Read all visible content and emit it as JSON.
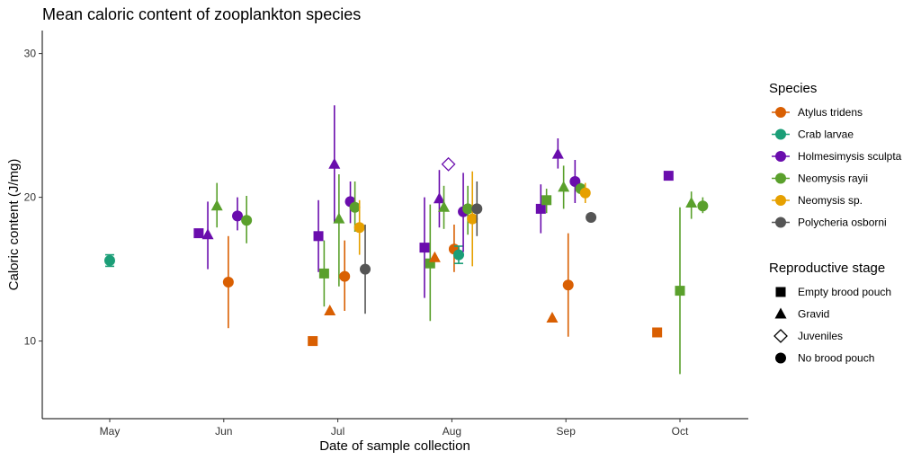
{
  "chart_data": {
    "type": "scatter",
    "title": "Mean caloric content of zooplankton species",
    "xlabel": "Date of sample collection",
    "ylabel": "Caloric content (J/mg)",
    "x_categories": [
      "May",
      "Jun",
      "Jul",
      "Aug",
      "Sep",
      "Oct"
    ],
    "yticks": [
      10,
      20,
      30
    ],
    "ylim": [
      4.6,
      31.6
    ],
    "grid": false,
    "legend_position": "right",
    "legend_species_title": "Species",
    "legend_stage_title": "Reproductive stage",
    "species": [
      {
        "name": "Atylus tridens",
        "color": "#D95F02"
      },
      {
        "name": "Crab larvae",
        "color": "#1B9E77"
      },
      {
        "name": "Holmesimysis sculpta",
        "color": "#6A0DAD"
      },
      {
        "name": "Neomysis rayii",
        "color": "#5AA02C"
      },
      {
        "name": "Neomysis sp.",
        "color": "#E6A000"
      },
      {
        "name": "Polycheria osborni",
        "color": "#555555"
      }
    ],
    "stages": [
      {
        "name": "Empty brood pouch",
        "shape": "square"
      },
      {
        "name": "Gravid",
        "shape": "triangle"
      },
      {
        "name": "Juveniles",
        "shape": "diamond-open"
      },
      {
        "name": "No brood pouch",
        "shape": "circle"
      }
    ],
    "points": [
      {
        "month": "May",
        "offset": 0.0,
        "species": "Crab larvae",
        "stage": "No brood pouch",
        "y": 15.6,
        "lo": 15.2,
        "hi": 16.0
      },
      {
        "month": "Jun",
        "offset": -0.22,
        "species": "Holmesimysis sculpta",
        "stage": "Empty brood pouch",
        "y": 17.5
      },
      {
        "month": "Jun",
        "offset": -0.14,
        "species": "Holmesimysis sculpta",
        "stage": "Gravid",
        "y": 17.4,
        "lo": 15.0,
        "hi": 19.7
      },
      {
        "month": "Jun",
        "offset": -0.06,
        "species": "Neomysis rayii",
        "stage": "Gravid",
        "y": 19.4,
        "lo": 17.9,
        "hi": 21.0
      },
      {
        "month": "Jun",
        "offset": 0.04,
        "species": "Atylus tridens",
        "stage": "No brood pouch",
        "y": 14.1,
        "lo": 10.9,
        "hi": 17.3
      },
      {
        "month": "Jun",
        "offset": 0.12,
        "species": "Holmesimysis sculpta",
        "stage": "No brood pouch",
        "y": 18.7,
        "lo": 17.7,
        "hi": 20.0
      },
      {
        "month": "Jun",
        "offset": 0.2,
        "species": "Neomysis rayii",
        "stage": "No brood pouch",
        "y": 18.4,
        "lo": 16.8,
        "hi": 20.1
      },
      {
        "month": "Jul",
        "offset": -0.22,
        "species": "Atylus tridens",
        "stage": "Empty brood pouch",
        "y": 10.0
      },
      {
        "month": "Jul",
        "offset": -0.17,
        "species": "Holmesimysis sculpta",
        "stage": "Empty brood pouch",
        "y": 17.3,
        "lo": 14.8,
        "hi": 19.8
      },
      {
        "month": "Jul",
        "offset": -0.12,
        "species": "Neomysis rayii",
        "stage": "Empty brood pouch",
        "y": 14.7,
        "lo": 12.4,
        "hi": 17.0
      },
      {
        "month": "Jul",
        "offset": -0.07,
        "species": "Atylus tridens",
        "stage": "Gravid",
        "y": 12.1
      },
      {
        "month": "Jul",
        "offset": -0.03,
        "species": "Holmesimysis sculpta",
        "stage": "Gravid",
        "y": 22.3,
        "lo": 18.2,
        "hi": 26.4
      },
      {
        "month": "Jul",
        "offset": 0.01,
        "species": "Neomysis rayii",
        "stage": "Gravid",
        "y": 18.5,
        "lo": 13.8,
        "hi": 21.6
      },
      {
        "month": "Jul",
        "offset": 0.06,
        "species": "Atylus tridens",
        "stage": "No brood pouch",
        "y": 14.5,
        "lo": 12.1,
        "hi": 17.0
      },
      {
        "month": "Jul",
        "offset": 0.11,
        "species": "Holmesimysis sculpta",
        "stage": "No brood pouch",
        "y": 19.7,
        "lo": 18.2,
        "hi": 21.1
      },
      {
        "month": "Jul",
        "offset": 0.15,
        "species": "Neomysis rayii",
        "stage": "No brood pouch",
        "y": 19.3,
        "lo": 17.6,
        "hi": 21.1
      },
      {
        "month": "Jul",
        "offset": 0.19,
        "species": "Neomysis sp.",
        "stage": "No brood pouch",
        "y": 17.9,
        "lo": 16.0,
        "hi": 19.8
      },
      {
        "month": "Jul",
        "offset": 0.24,
        "species": "Polycheria osborni",
        "stage": "No brood pouch",
        "y": 15.0,
        "lo": 11.9,
        "hi": 18.1
      },
      {
        "month": "Aug",
        "offset": -0.24,
        "species": "Holmesimysis sculpta",
        "stage": "Empty brood pouch",
        "y": 16.5,
        "lo": 13.0,
        "hi": 20.0
      },
      {
        "month": "Aug",
        "offset": -0.19,
        "species": "Neomysis rayii",
        "stage": "Empty brood pouch",
        "y": 15.4,
        "lo": 11.4,
        "hi": 19.5
      },
      {
        "month": "Aug",
        "offset": -0.15,
        "species": "Atylus tridens",
        "stage": "Gravid",
        "y": 15.8
      },
      {
        "month": "Aug",
        "offset": -0.11,
        "species": "Holmesimysis sculpta",
        "stage": "Gravid",
        "y": 19.9,
        "lo": 17.9,
        "hi": 21.9
      },
      {
        "month": "Aug",
        "offset": -0.07,
        "species": "Neomysis rayii",
        "stage": "Gravid",
        "y": 19.3,
        "lo": 17.8,
        "hi": 20.8
      },
      {
        "month": "Aug",
        "offset": -0.03,
        "species": "Holmesimysis sculpta",
        "stage": "Juveniles",
        "y": 22.3
      },
      {
        "month": "Aug",
        "offset": 0.02,
        "species": "Atylus tridens",
        "stage": "No brood pouch",
        "y": 16.4,
        "lo": 14.8,
        "hi": 18.1
      },
      {
        "month": "Aug",
        "offset": 0.06,
        "species": "Crab larvae",
        "stage": "No brood pouch",
        "y": 16.0,
        "lo": 15.4,
        "hi": 16.6
      },
      {
        "month": "Aug",
        "offset": 0.1,
        "species": "Holmesimysis sculpta",
        "stage": "No brood pouch",
        "y": 19.0,
        "lo": 16.2,
        "hi": 21.7
      },
      {
        "month": "Aug",
        "offset": 0.14,
        "species": "Neomysis rayii",
        "stage": "No brood pouch",
        "y": 19.2,
        "lo": 17.4,
        "hi": 20.8
      },
      {
        "month": "Aug",
        "offset": 0.18,
        "species": "Neomysis sp.",
        "stage": "No brood pouch",
        "y": 18.5,
        "lo": 15.2,
        "hi": 21.8
      },
      {
        "month": "Aug",
        "offset": 0.22,
        "species": "Polycheria osborni",
        "stage": "No brood pouch",
        "y": 19.2,
        "lo": 17.3,
        "hi": 21.1
      },
      {
        "month": "Sep",
        "offset": -0.22,
        "species": "Holmesimysis sculpta",
        "stage": "Empty brood pouch",
        "y": 19.2,
        "lo": 17.5,
        "hi": 20.9
      },
      {
        "month": "Sep",
        "offset": -0.17,
        "species": "Neomysis rayii",
        "stage": "Empty brood pouch",
        "y": 19.8,
        "lo": 18.9,
        "hi": 20.6
      },
      {
        "month": "Sep",
        "offset": -0.12,
        "species": "Atylus tridens",
        "stage": "Gravid",
        "y": 11.6
      },
      {
        "month": "Sep",
        "offset": -0.07,
        "species": "Holmesimysis sculpta",
        "stage": "Gravid",
        "y": 23.0,
        "lo": 22.0,
        "hi": 24.1
      },
      {
        "month": "Sep",
        "offset": -0.02,
        "species": "Neomysis rayii",
        "stage": "Gravid",
        "y": 20.7,
        "lo": 19.2,
        "hi": 22.2
      },
      {
        "month": "Sep",
        "offset": 0.02,
        "species": "Atylus tridens",
        "stage": "No brood pouch",
        "y": 13.9,
        "lo": 10.3,
        "hi": 17.5
      },
      {
        "month": "Sep",
        "offset": 0.08,
        "species": "Holmesimysis sculpta",
        "stage": "No brood pouch",
        "y": 21.1,
        "lo": 19.6,
        "hi": 22.6
      },
      {
        "month": "Sep",
        "offset": 0.13,
        "species": "Neomysis rayii",
        "stage": "No brood pouch",
        "y": 20.6,
        "lo": 20.2,
        "hi": 21.0
      },
      {
        "month": "Sep",
        "offset": 0.17,
        "species": "Neomysis sp.",
        "stage": "No brood pouch",
        "y": 20.3,
        "lo": 19.6,
        "hi": 21.0
      },
      {
        "month": "Sep",
        "offset": 0.22,
        "species": "Polycheria osborni",
        "stage": "No brood pouch",
        "y": 18.6
      },
      {
        "month": "Oct",
        "offset": -0.2,
        "species": "Atylus tridens",
        "stage": "Empty brood pouch",
        "y": 10.6
      },
      {
        "month": "Oct",
        "offset": -0.1,
        "species": "Holmesimysis sculpta",
        "stage": "Empty brood pouch",
        "y": 21.5
      },
      {
        "month": "Oct",
        "offset": 0.0,
        "species": "Neomysis rayii",
        "stage": "Empty brood pouch",
        "y": 13.5,
        "lo": 7.7,
        "hi": 19.3
      },
      {
        "month": "Oct",
        "offset": 0.1,
        "species": "Neomysis rayii",
        "stage": "Gravid",
        "y": 19.6,
        "lo": 18.5,
        "hi": 20.4
      },
      {
        "month": "Oct",
        "offset": 0.2,
        "species": "Neomysis rayii",
        "stage": "No brood pouch",
        "y": 19.4,
        "lo": 18.9,
        "hi": 20.0
      }
    ]
  }
}
